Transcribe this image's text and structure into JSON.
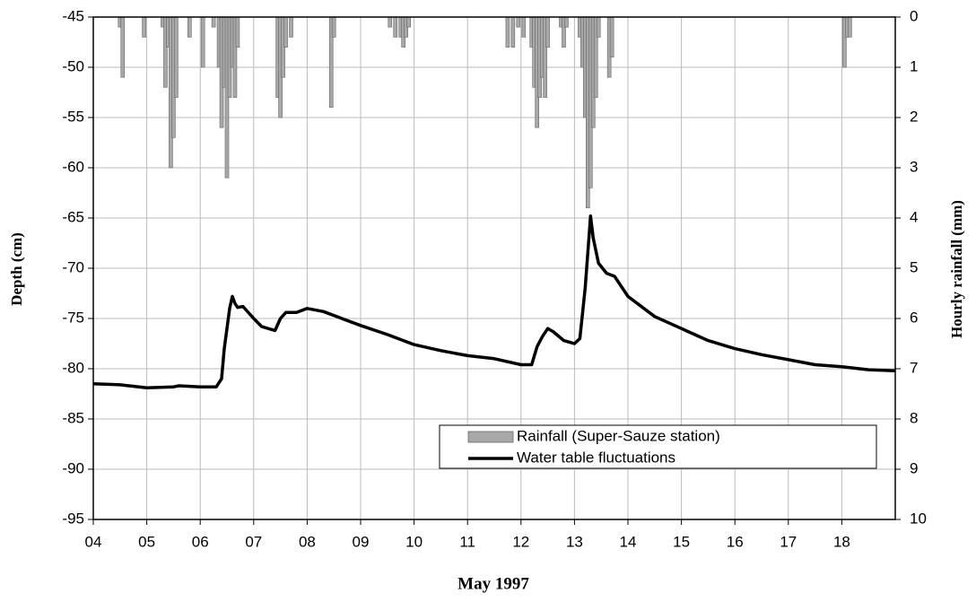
{
  "chart_data": {
    "type": "combo",
    "x_label": "May 1997",
    "y_label": "Depth (cm)",
    "y2_label": "Hourly rainfall (mm)",
    "xlim": [
      4,
      19
    ],
    "xticks": [
      {
        "value": 4,
        "label": "04"
      },
      {
        "value": 5,
        "label": "05"
      },
      {
        "value": 6,
        "label": "06"
      },
      {
        "value": 7,
        "label": "07"
      },
      {
        "value": 8,
        "label": "08"
      },
      {
        "value": 9,
        "label": "09"
      },
      {
        "value": 10,
        "label": "10"
      },
      {
        "value": 11,
        "label": "11"
      },
      {
        "value": 12,
        "label": "12"
      },
      {
        "value": 13,
        "label": "13"
      },
      {
        "value": 14,
        "label": "14"
      },
      {
        "value": 15,
        "label": "15"
      },
      {
        "value": 16,
        "label": "16"
      },
      {
        "value": 17,
        "label": "17"
      },
      {
        "value": 18,
        "label": "18"
      }
    ],
    "ylim": [
      -95,
      -45
    ],
    "yticks": [
      -45,
      -50,
      -55,
      -60,
      -65,
      -70,
      -75,
      -80,
      -85,
      -90,
      -95
    ],
    "y2lim": [
      10,
      0
    ],
    "y2ticks": [
      0,
      1,
      2,
      3,
      4,
      5,
      6,
      7,
      8,
      9,
      10
    ],
    "grid": true,
    "legend": "bottom-right",
    "series": [
      {
        "name": "Rainfall (Super-Sauze station)",
        "type": "bar",
        "axis": "y2",
        "color": "#a8a8a8",
        "x": [
          4.5,
          4.55,
          4.95,
          5.3,
          5.35,
          5.4,
          5.45,
          5.5,
          5.55,
          5.8,
          6.05,
          6.25,
          6.35,
          6.4,
          6.45,
          6.5,
          6.55,
          6.6,
          6.65,
          6.7,
          7.45,
          7.5,
          7.55,
          7.6,
          7.7,
          8.45,
          8.5,
          9.55,
          9.65,
          9.75,
          9.8,
          9.85,
          9.9,
          11.75,
          11.85,
          11.95,
          12.05,
          12.2,
          12.25,
          12.3,
          12.35,
          12.4,
          12.45,
          12.5,
          12.75,
          12.8,
          12.85,
          13.1,
          13.15,
          13.2,
          13.25,
          13.3,
          13.35,
          13.4,
          13.45,
          13.65,
          13.7,
          18.05,
          18.1,
          18.15
        ],
        "values": [
          0.2,
          1.2,
          0.4,
          0.2,
          1.4,
          0.6,
          3.0,
          2.4,
          1.6,
          0.4,
          1.0,
          0.2,
          1.0,
          2.2,
          1.4,
          3.2,
          1.6,
          1.0,
          1.6,
          0.6,
          1.6,
          2.0,
          1.2,
          0.6,
          0.4,
          1.8,
          0.4,
          0.2,
          0.4,
          0.4,
          0.6,
          0.4,
          0.2,
          0.6,
          0.6,
          0.2,
          0.4,
          0.6,
          1.4,
          2.2,
          1.6,
          1.2,
          1.6,
          0.6,
          0.2,
          0.6,
          0.2,
          0.4,
          1.0,
          2.0,
          3.8,
          3.4,
          2.2,
          1.6,
          0.4,
          1.2,
          0.8,
          1.0,
          0.4,
          0.4
        ]
      },
      {
        "name": "Water table fluctuations",
        "type": "line",
        "color": "#000000",
        "x": [
          4,
          4.5,
          5,
          5.5,
          5.6,
          6,
          6.3,
          6.4,
          6.45,
          6.5,
          6.55,
          6.6,
          6.65,
          6.7,
          6.8,
          7,
          7.15,
          7.4,
          7.5,
          7.6,
          7.8,
          8,
          8.3,
          8.6,
          9,
          9.5,
          10,
          10.5,
          11,
          11.5,
          12,
          12.2,
          12.3,
          12.4,
          12.5,
          12.6,
          12.8,
          13,
          13.1,
          13.2,
          13.27,
          13.3,
          13.35,
          13.45,
          13.6,
          13.75,
          14,
          14.5,
          15,
          15.5,
          16,
          16.5,
          17,
          17.5,
          18,
          18.5,
          19
        ],
        "values": [
          -81.5,
          -81.6,
          -81.9,
          -81.8,
          -81.7,
          -81.8,
          -81.8,
          -81,
          -78,
          -76,
          -74,
          -72.8,
          -73.5,
          -73.9,
          -73.8,
          -75,
          -75.8,
          -76.2,
          -75,
          -74.4,
          -74.4,
          -74,
          -74.3,
          -74.9,
          -75.7,
          -76.6,
          -77.6,
          -78.2,
          -78.7,
          -79,
          -79.6,
          -79.6,
          -77.8,
          -76.8,
          -76,
          -76.3,
          -77.2,
          -77.5,
          -77,
          -72,
          -67,
          -64.8,
          -67,
          -69.5,
          -70.5,
          -70.8,
          -72.8,
          -74.8,
          -76,
          -77.2,
          -78,
          -78.6,
          -79.1,
          -79.6,
          -79.8,
          -80.1,
          -80.2
        ]
      }
    ]
  }
}
